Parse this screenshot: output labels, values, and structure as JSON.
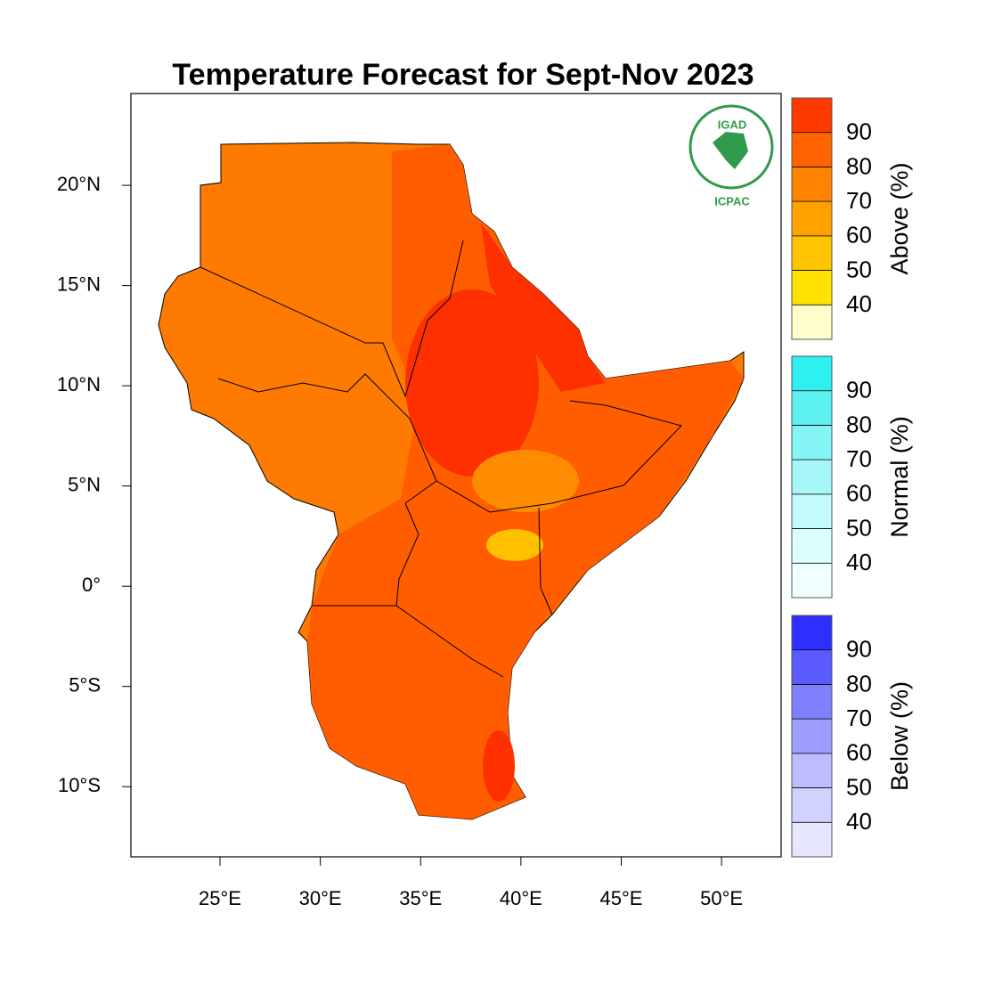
{
  "title": "Temperature Forecast for Sept-Nov 2023",
  "map": {
    "xlim": [
      20.56,
      52.97
    ],
    "ylim": [
      -13.5,
      24.58
    ],
    "xticks": [
      {
        "value": 25,
        "label": "25°E"
      },
      {
        "value": 30,
        "label": "30°E"
      },
      {
        "value": 35,
        "label": "35°E"
      },
      {
        "value": 40,
        "label": "40°E"
      },
      {
        "value": 45,
        "label": "45°E"
      },
      {
        "value": 50,
        "label": "50°E"
      }
    ],
    "yticks": [
      {
        "value": 20,
        "label": "20°N"
      },
      {
        "value": 15,
        "label": "15°N"
      },
      {
        "value": 10,
        "label": "10°N"
      },
      {
        "value": 5,
        "label": "5°N"
      },
      {
        "value": 0,
        "label": "0°"
      },
      {
        "value": -5,
        "label": "5°S"
      },
      {
        "value": -10,
        "label": "10°S"
      }
    ]
  },
  "logo": {
    "top": "IGAD",
    "bottom": "ICPAC"
  },
  "colorbars": [
    {
      "label": "Above (%)",
      "levels": [
        40,
        50,
        60,
        70,
        80,
        90
      ],
      "colors": [
        "#ffffcc",
        "#ffe200",
        "#ffc400",
        "#ffa200",
        "#ff8200",
        "#ff6400",
        "#ff3a00"
      ]
    },
    {
      "label": "Normal (%)",
      "levels": [
        40,
        50,
        60,
        70,
        80,
        90
      ],
      "colors": [
        "#f0ffff",
        "#dcffff",
        "#c4fcfc",
        "#a6f8f8",
        "#84f4f4",
        "#5cf0f0",
        "#2ef0f0"
      ]
    },
    {
      "label": "Below (%)",
      "levels": [
        40,
        50,
        60,
        70,
        80,
        90
      ],
      "colors": [
        "#e6e6ff",
        "#d2d2ff",
        "#bcbcff",
        "#9e9eff",
        "#8080ff",
        "#5a5aff",
        "#2e2eff"
      ]
    }
  ]
}
